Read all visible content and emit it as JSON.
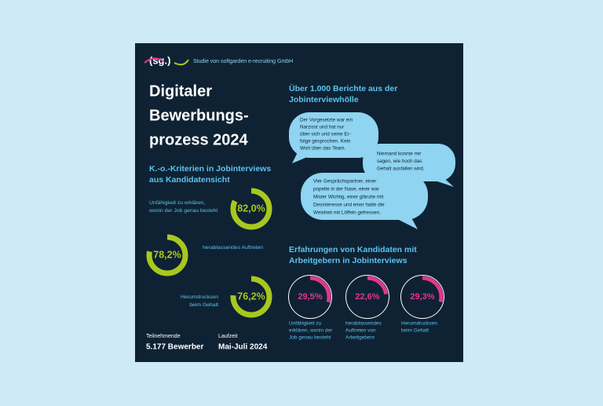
{
  "header": {
    "logo": "(sg.)",
    "publisher": "Studie von softgarden e-recruiting GmbH"
  },
  "title": [
    "Digitaler",
    "Bewerbungs-",
    "prozess 2024"
  ],
  "left_section": {
    "heading": [
      "K.-o.-Kriterien in Jobinterviews",
      "aus Kandidatensicht"
    ],
    "items": [
      {
        "label": [
          "Unfähigkeit zu erklären,",
          "wonin der Job genau besteht"
        ],
        "value": 82.0,
        "value_label": "82,0%"
      },
      {
        "label": [
          "herablassendes Auftreten"
        ],
        "value": 78.2,
        "value_label": "78,2%"
      },
      {
        "label": [
          "Herumdrucksen",
          "beim Gehalt"
        ],
        "value": 76.2,
        "value_label": "76,2%"
      }
    ]
  },
  "footer": {
    "participants_label": "Teilnehmende",
    "participants": "5.177 Bewerber",
    "period_label": "Laufzeit",
    "period": "Mai-Juli 2024"
  },
  "quotes_section": {
    "heading": [
      "Über 1.000 Berichte aus der",
      "Jobinterviewhölle"
    ],
    "quotes": [
      [
        "Der Vorgesetzte war ein",
        "Narzisst und hat nur",
        "über sich und seine Er-",
        "folge gesprochen. Kein",
        "Wort über das Team."
      ],
      [
        "Niemand konnte mir",
        "sagen, wie hoch das",
        "Gehalt ausfallen wird."
      ],
      [
        "Vier Gesprächspartner, einer",
        "popelte in der Nase, einer war",
        "Mister Wichtig, einer glänzte mit",
        "Desinteresse und einer hatte die",
        "Weisheit mit Löffeln gefressen."
      ]
    ]
  },
  "right_section": {
    "heading": [
      "Erfahrungen von Kandidaten mit",
      "Arbeitgebern in Jobinterviews"
    ],
    "items": [
      {
        "label": [
          "Unfähigkeit zu",
          "erklären, wonin der",
          "Job genau besteht"
        ],
        "value": 29.5,
        "value_label": "29,5%"
      },
      {
        "label": [
          "herablassendes",
          "Auftreten von",
          "Arbeitgebern"
        ],
        "value": 22.6,
        "value_label": "22,6%"
      },
      {
        "label": [
          "Herumdrucksen",
          "beim Gehalt"
        ],
        "value": 29.3,
        "value_label": "29,3%"
      }
    ]
  }
}
